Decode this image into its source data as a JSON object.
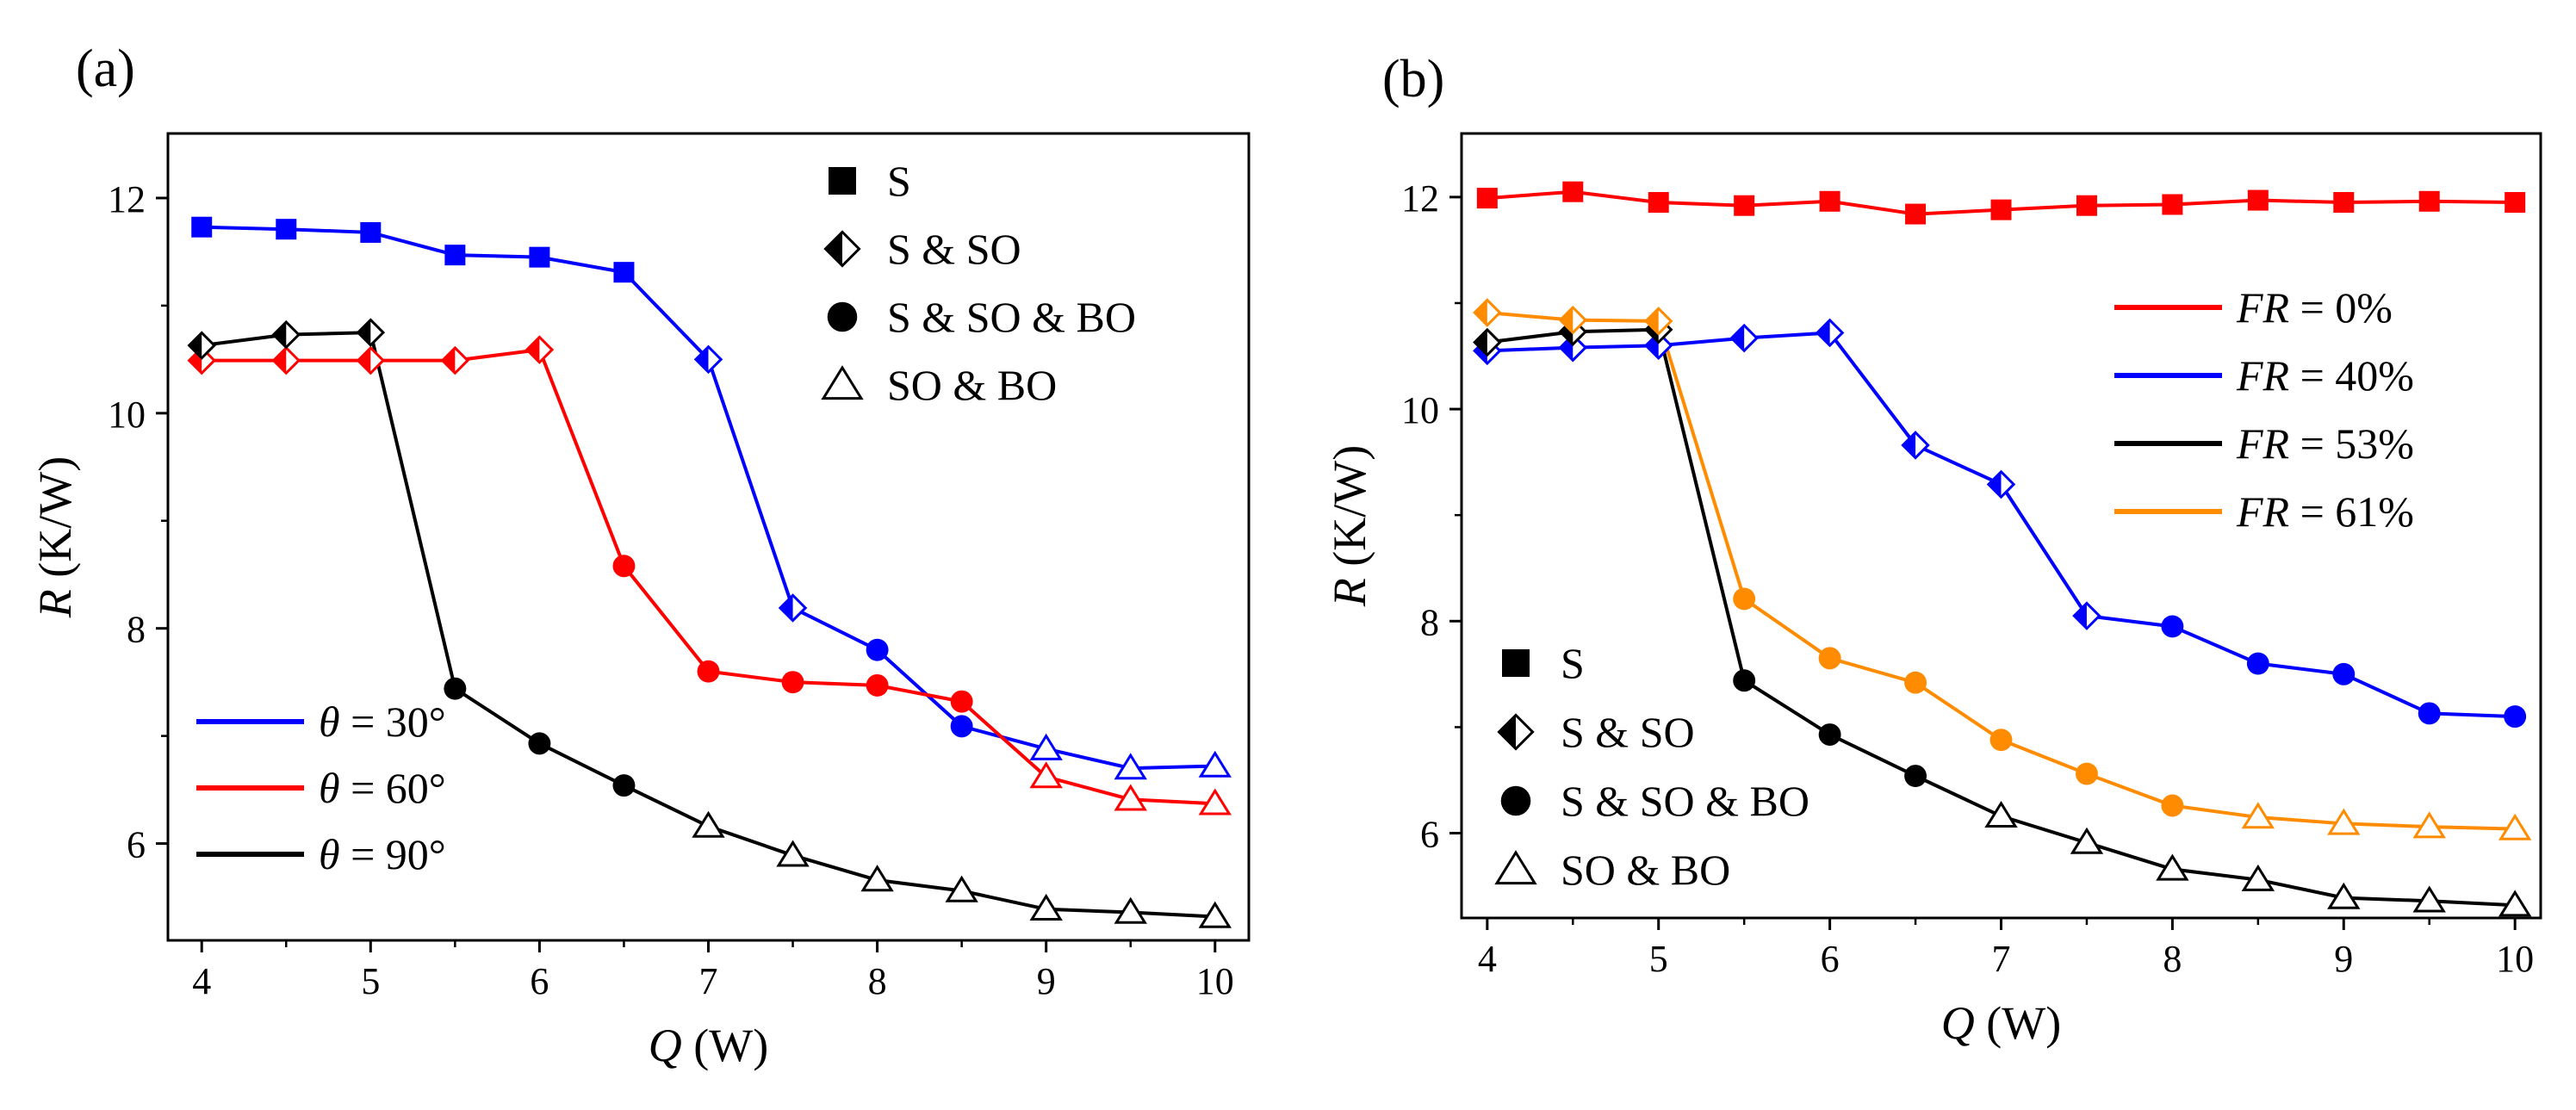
{
  "chart_data": [
    {
      "panel_label": "(a)",
      "type": "line",
      "xlabel": "Q (W)",
      "xlabel_symbol": "Q",
      "xlabel_unit": "(W)",
      "ylabel": "R (K/W)",
      "ylabel_symbol": "R",
      "ylabel_unit": "(K/W)",
      "xlim": [
        3.8,
        10.2
      ],
      "ylim": [
        5.1,
        12.6
      ],
      "xticks": [
        "4",
        "5",
        "6",
        "7",
        "8",
        "9",
        "10"
      ],
      "yticks": [
        "6",
        "8",
        "10",
        "12"
      ],
      "x": [
        4,
        4.5,
        5,
        5.5,
        6,
        6.5,
        7,
        7.5,
        8,
        8.5,
        9,
        9.5,
        10
      ],
      "series": [
        {
          "name": "θ = 30°",
          "prefix": "θ",
          "suffix": " = 30°",
          "color": "#0000ff",
          "values": [
            11.73,
            11.71,
            11.68,
            11.47,
            11.45,
            11.31,
            10.5,
            8.19,
            7.8,
            7.09,
            6.88,
            6.7,
            6.72
          ],
          "markers": [
            "S",
            "S",
            "S",
            "S",
            "S",
            "S",
            "SSO",
            "SSO",
            "SSOBO",
            "SSOBO",
            "SOBO",
            "SOBO",
            "SOBO"
          ]
        },
        {
          "name": "θ = 60°",
          "prefix": "θ",
          "suffix": " = 60°",
          "color": "#ff0000",
          "values": [
            10.49,
            10.49,
            10.49,
            10.49,
            10.59,
            8.58,
            7.6,
            7.5,
            7.47,
            7.32,
            6.62,
            6.41,
            6.37
          ],
          "markers": [
            "SSO",
            "SSO",
            "SSO",
            "SSO",
            "SSO",
            "SSOBO",
            "SSOBO",
            "SSOBO",
            "SSOBO",
            "SSOBO",
            "SOBO",
            "SOBO",
            "SOBO"
          ]
        },
        {
          "name": "θ = 90°",
          "prefix": "θ",
          "suffix": " = 90°",
          "color": "#000000",
          "values": [
            10.63,
            10.73,
            10.75,
            7.44,
            6.93,
            6.54,
            6.16,
            5.89,
            5.66,
            5.56,
            5.39,
            5.36,
            5.32
          ],
          "markers": [
            "SSO",
            "SSO",
            "SSO",
            "SSOBO",
            "SSOBO",
            "SSOBO",
            "SOBO",
            "SOBO",
            "SOBO",
            "SOBO",
            "SOBO",
            "SOBO",
            "SOBO"
          ]
        }
      ],
      "marker_legend": [
        {
          "marker": "S",
          "label": "S"
        },
        {
          "marker": "SSO",
          "label": "S & SO"
        },
        {
          "marker": "SSOBO",
          "label": "S & SO & BO"
        },
        {
          "marker": "SOBO",
          "label": "SO & BO"
        }
      ],
      "marker_legend_position": "top-right",
      "series_legend_position": "bottom-left"
    },
    {
      "panel_label": "(b)",
      "type": "line",
      "xlabel": "Q (W)",
      "xlabel_symbol": "Q",
      "xlabel_unit": "(W)",
      "ylabel": "R (K/W)",
      "ylabel_symbol": "R",
      "ylabel_unit": "(K/W)",
      "xlim": [
        3.85,
        10.15
      ],
      "ylim": [
        5.2,
        12.6
      ],
      "xticks": [
        "4",
        "5",
        "6",
        "7",
        "8",
        "9",
        "10"
      ],
      "yticks": [
        "6",
        "8",
        "10",
        "12"
      ],
      "x": [
        4,
        4.5,
        5,
        5.5,
        6,
        6.5,
        7,
        7.5,
        8,
        8.5,
        9,
        9.5,
        10
      ],
      "series": [
        {
          "name": "FR = 0%",
          "prefix": "FR",
          "suffix": " = 0%",
          "color": "#ff0000",
          "values": [
            11.99,
            12.05,
            11.95,
            11.92,
            11.96,
            11.84,
            11.88,
            11.92,
            11.93,
            11.97,
            11.95,
            11.96,
            11.95
          ],
          "markers": [
            "S",
            "S",
            "S",
            "S",
            "S",
            "S",
            "S",
            "S",
            "S",
            "S",
            "S",
            "S",
            "S"
          ]
        },
        {
          "name": "FR = 40%",
          "prefix": "FR",
          "suffix": " = 40%",
          "color": "#0000ff",
          "values": [
            10.55,
            10.58,
            10.6,
            10.67,
            10.72,
            9.66,
            9.29,
            8.05,
            7.95,
            7.6,
            7.5,
            7.13,
            7.1
          ],
          "markers": [
            "SSO",
            "SSO",
            "SSO",
            "SSO",
            "SSO",
            "SSO",
            "SSO",
            "SSO",
            "SSOBO",
            "SSOBO",
            "SSOBO",
            "SSOBO",
            "SSOBO"
          ]
        },
        {
          "name": "FR = 53%",
          "prefix": "FR",
          "suffix": " = 53%",
          "color": "#000000",
          "values": [
            10.63,
            10.73,
            10.75,
            7.44,
            6.93,
            6.54,
            6.16,
            5.91,
            5.66,
            5.56,
            5.39,
            5.36,
            5.32
          ],
          "markers": [
            "SSO",
            "SSO",
            "SSO",
            "SSOBO",
            "SSOBO",
            "SSOBO",
            "SOBO",
            "SOBO",
            "SOBO",
            "SOBO",
            "SOBO",
            "SOBO",
            "SOBO"
          ]
        },
        {
          "name": "FR = 61%",
          "prefix": "FR",
          "suffix": " = 61%",
          "color": "#ff8c00",
          "values": [
            10.91,
            10.84,
            10.83,
            8.21,
            7.65,
            7.42,
            6.88,
            6.56,
            6.26,
            6.15,
            6.09,
            6.06,
            6.04
          ],
          "markers": [
            "SSO",
            "SSO",
            "SSO",
            "SSOBO",
            "SSOBO",
            "SSOBO",
            "SSOBO",
            "SSOBO",
            "SSOBO",
            "SOBO",
            "SOBO",
            "SOBO",
            "SOBO"
          ]
        }
      ],
      "marker_legend": [
        {
          "marker": "S",
          "label": "S"
        },
        {
          "marker": "SSO",
          "label": "S & SO"
        },
        {
          "marker": "SSOBO",
          "label": "S & SO & BO"
        },
        {
          "marker": "SOBO",
          "label": "SO & BO"
        }
      ],
      "marker_legend_position": "bottom-left",
      "series_legend_position": "top-right"
    }
  ]
}
